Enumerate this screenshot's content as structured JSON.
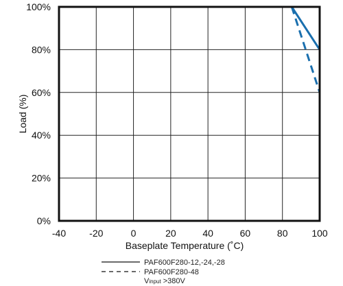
{
  "chart_data": {
    "type": "line",
    "title": "",
    "xlabel": "Baseplate Temperature (˚C)",
    "ylabel": "Load (%)",
    "xlim": [
      -40,
      100
    ],
    "ylim": [
      0,
      100
    ],
    "x_ticks": [
      "-40",
      "-20",
      "0",
      "20",
      "40",
      "60",
      "80",
      "100"
    ],
    "y_ticks": [
      "0%",
      "20%",
      "40%",
      "60%",
      "80%",
      "100%"
    ],
    "grid": true,
    "series": [
      {
        "name": "PAF600F280-12,-24,-28",
        "style": "solid",
        "color": "#1a6fae",
        "x": [
          -40,
          85,
          100,
          100
        ],
        "y": [
          100,
          100,
          80,
          0
        ]
      },
      {
        "name": "PAF600F280-48",
        "style": "dashed",
        "color": "#1a6fae",
        "x": [
          85,
          100
        ],
        "y": [
          100,
          60
        ]
      }
    ],
    "legend": {
      "placement": "bottom",
      "entries": [
        {
          "label": "PAF600F280-12,-24,-28",
          "style": "solid"
        },
        {
          "label": "PAF600F280-48",
          "style": "dashed"
        }
      ],
      "note_main": "V",
      "note_sub": "input",
      "note_rest": " >380V"
    }
  }
}
